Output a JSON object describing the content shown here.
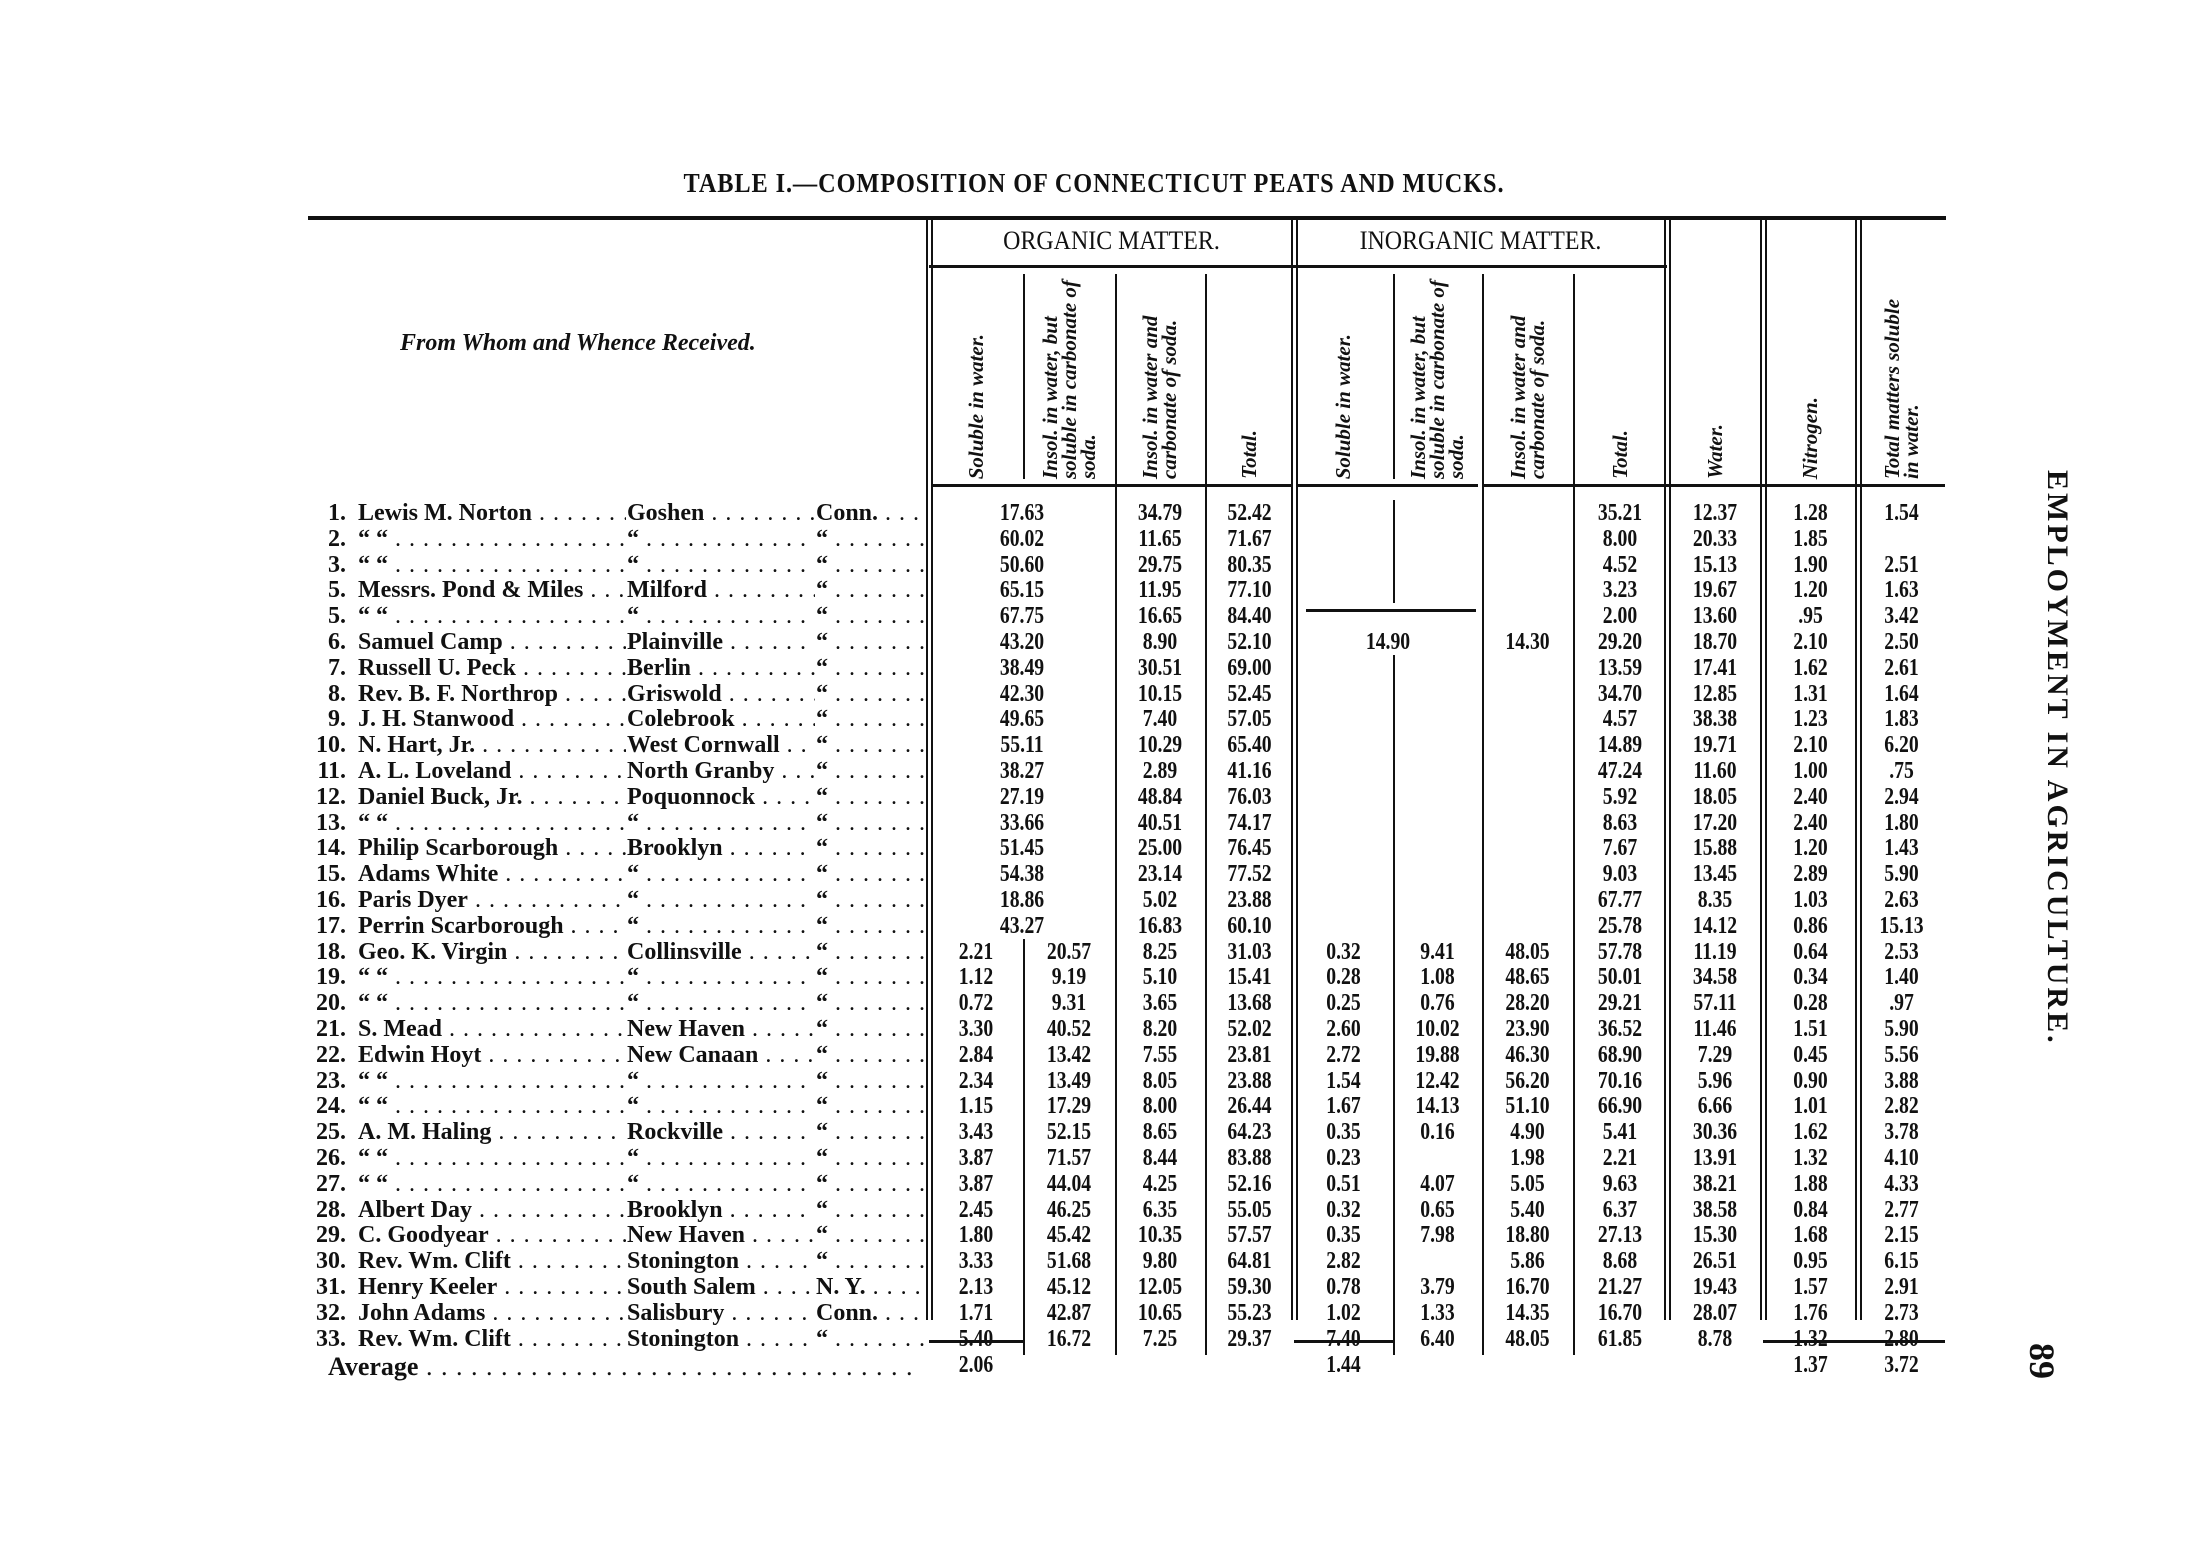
{
  "title": "TABLE I.—COMPOSITION OF CONNECTICUT PEATS AND MUCKS.",
  "side_heading": "EMPLOYMENT IN AGRICULTURE.",
  "page_number": "89",
  "headers": {
    "from_whom": "From Whom and Whence Received.",
    "organic_group": "ORGANIC MATTER.",
    "inorganic_group": "INORGANIC MATTER.",
    "columns": [
      "Soluble in water.",
      "Insol. in water, but soluble in carbonate of soda.",
      "Insol. in water and carbonate of soda.",
      "Total.",
      "Soluble in water.",
      "Insol. in water, but soluble in carbonate of soda.",
      "Insol. in water and carbonate of soda.",
      "Total.",
      "Water.",
      "Nitrogen.",
      "Total matters soluble in water."
    ]
  },
  "inorganic_combined": {
    "soluble_and_insol": "14.90",
    "insol_water_and_soda": "14.30"
  },
  "rows": [
    {
      "no": "1.",
      "name": "Lewis M. Norton",
      "town": "Goshen",
      "state": "Conn.",
      "v": [
        "17.63",
        "",
        "34.79",
        "52.42",
        "",
        "",
        "",
        "35.21",
        "12.37",
        "1.28",
        "1.54"
      ]
    },
    {
      "no": "2.",
      "name": "“        “",
      "town": "“",
      "state": "“",
      "v": [
        "60.02",
        "",
        "11.65",
        "71.67",
        "",
        "",
        "",
        "8.00",
        "20.33",
        "1.85",
        ""
      ]
    },
    {
      "no": "3.",
      "name": "“        “",
      "town": "“",
      "state": "“",
      "v": [
        "50.60",
        "",
        "29.75",
        "80.35",
        "",
        "",
        "",
        "4.52",
        "15.13",
        "1.90",
        "2.51"
      ]
    },
    {
      "no": "5.",
      "name": "Messrs. Pond & Miles",
      "town": "Milford",
      "state": "“",
      "v": [
        "65.15",
        "",
        "11.95",
        "77.10",
        "",
        "",
        "",
        "3.23",
        "19.67",
        "1.20",
        "1.63"
      ]
    },
    {
      "no": "5.",
      "name": "“        “",
      "town": "“",
      "state": "“",
      "v": [
        "67.75",
        "",
        "16.65",
        "84.40",
        "",
        "",
        "",
        "2.00",
        "13.60",
        ".95",
        "3.42"
      ]
    },
    {
      "no": "6.",
      "name": "Samuel Camp",
      "town": "Plainville",
      "state": "“",
      "v": [
        "43.20",
        "",
        "8.90",
        "52.10",
        "",
        "",
        "",
        "29.20",
        "18.70",
        "2.10",
        "2.50"
      ]
    },
    {
      "no": "7.",
      "name": "Russell U. Peck",
      "town": "Berlin",
      "state": "“",
      "v": [
        "38.49",
        "",
        "30.51",
        "69.00",
        "",
        "",
        "",
        "13.59",
        "17.41",
        "1.62",
        "2.61"
      ]
    },
    {
      "no": "8.",
      "name": "Rev. B. F. Northrop",
      "town": "Griswold",
      "state": "“",
      "v": [
        "42.30",
        "",
        "10.15",
        "52.45",
        "",
        "",
        "",
        "34.70",
        "12.85",
        "1.31",
        "1.64"
      ]
    },
    {
      "no": "9.",
      "name": "J. H. Stanwood",
      "town": "Colebrook",
      "state": "“",
      "v": [
        "49.65",
        "",
        "7.40",
        "57.05",
        "",
        "",
        "",
        "4.57",
        "38.38",
        "1.23",
        "1.83"
      ]
    },
    {
      "no": "10.",
      "name": "N. Hart, Jr.",
      "town": "West Cornwall",
      "state": "“",
      "v": [
        "55.11",
        "",
        "10.29",
        "65.40",
        "",
        "",
        "",
        "14.89",
        "19.71",
        "2.10",
        "6.20"
      ]
    },
    {
      "no": "11.",
      "name": "A. L. Loveland",
      "town": "North Granby",
      "state": "“",
      "v": [
        "38.27",
        "",
        "2.89",
        "41.16",
        "",
        "",
        "",
        "47.24",
        "11.60",
        "1.00",
        ".75"
      ]
    },
    {
      "no": "12.",
      "name": "Daniel Buck, Jr.",
      "town": "Poquonnock",
      "state": "“",
      "v": [
        "27.19",
        "",
        "48.84",
        "76.03",
        "",
        "",
        "",
        "5.92",
        "18.05",
        "2.40",
        "2.94"
      ]
    },
    {
      "no": "13.",
      "name": "“        “",
      "town": "“",
      "state": "“",
      "v": [
        "33.66",
        "",
        "40.51",
        "74.17",
        "",
        "",
        "",
        "8.63",
        "17.20",
        "2.40",
        "1.80"
      ]
    },
    {
      "no": "14.",
      "name": "Philip Scarborough",
      "town": "Brooklyn",
      "state": "“",
      "v": [
        "51.45",
        "",
        "25.00",
        "76.45",
        "",
        "",
        "",
        "7.67",
        "15.88",
        "1.20",
        "1.43"
      ]
    },
    {
      "no": "15.",
      "name": "Adams White",
      "town": "“",
      "state": "“",
      "v": [
        "54.38",
        "",
        "23.14",
        "77.52",
        "",
        "",
        "",
        "9.03",
        "13.45",
        "2.89",
        "5.90"
      ]
    },
    {
      "no": "16.",
      "name": "Paris Dyer",
      "town": "“",
      "state": "“",
      "v": [
        "18.86",
        "",
        "5.02",
        "23.88",
        "",
        "",
        "",
        "67.77",
        "8.35",
        "1.03",
        "2.63"
      ]
    },
    {
      "no": "17.",
      "name": "Perrin Scarborough",
      "town": "“",
      "state": "“",
      "v": [
        "43.27",
        "",
        "16.83",
        "60.10",
        "",
        "",
        "",
        "25.78",
        "14.12",
        "0.86",
        "15.13"
      ]
    },
    {
      "no": "18.",
      "name": "Geo. K. Virgin",
      "town": "Collinsville",
      "state": "“",
      "v": [
        "2.21",
        "20.57",
        "8.25",
        "31.03",
        "0.32",
        "9.41",
        "48.05",
        "57.78",
        "11.19",
        "0.64",
        "2.53"
      ]
    },
    {
      "no": "19.",
      "name": "“        “",
      "town": "“",
      "state": "“",
      "v": [
        "1.12",
        "9.19",
        "5.10",
        "15.41",
        "0.28",
        "1.08",
        "48.65",
        "50.01",
        "34.58",
        "0.34",
        "1.40"
      ]
    },
    {
      "no": "20.",
      "name": "“        “",
      "town": "“",
      "state": "“",
      "v": [
        "0.72",
        "9.31",
        "3.65",
        "13.68",
        "0.25",
        "0.76",
        "28.20",
        "29.21",
        "57.11",
        "0.28",
        ".97"
      ]
    },
    {
      "no": "21.",
      "name": "S. Mead",
      "town": "New Haven",
      "state": "“",
      "v": [
        "3.30",
        "40.52",
        "8.20",
        "52.02",
        "2.60",
        "10.02",
        "23.90",
        "36.52",
        "11.46",
        "1.51",
        "5.90"
      ]
    },
    {
      "no": "22.",
      "name": "Edwin Hoyt",
      "town": "New Canaan",
      "state": "“",
      "v": [
        "2.84",
        "13.42",
        "7.55",
        "23.81",
        "2.72",
        "19.88",
        "46.30",
        "68.90",
        "7.29",
        "0.45",
        "5.56"
      ]
    },
    {
      "no": "23.",
      "name": "“        “",
      "town": "“",
      "state": "“",
      "v": [
        "2.34",
        "13.49",
        "8.05",
        "23.88",
        "1.54",
        "12.42",
        "56.20",
        "70.16",
        "5.96",
        "0.90",
        "3.88"
      ]
    },
    {
      "no": "24.",
      "name": "“        “",
      "town": "“",
      "state": "“",
      "v": [
        "1.15",
        "17.29",
        "8.00",
        "26.44",
        "1.67",
        "14.13",
        "51.10",
        "66.90",
        "6.66",
        "1.01",
        "2.82"
      ]
    },
    {
      "no": "25.",
      "name": "A. M. Haling",
      "town": "Rockville",
      "state": "“",
      "v": [
        "3.43",
        "52.15",
        "8.65",
        "64.23",
        "0.35",
        "0.16",
        "4.90",
        "5.41",
        "30.36",
        "1.62",
        "3.78"
      ]
    },
    {
      "no": "26.",
      "name": "“        “",
      "town": "“",
      "state": "“",
      "v": [
        "3.87",
        "71.57",
        "8.44",
        "83.88",
        "0.23",
        "",
        "1.98",
        "2.21",
        "13.91",
        "1.32",
        "4.10"
      ]
    },
    {
      "no": "27.",
      "name": "“        “",
      "town": "“",
      "state": "“",
      "v": [
        "3.87",
        "44.04",
        "4.25",
        "52.16",
        "0.51",
        "4.07",
        "5.05",
        "9.63",
        "38.21",
        "1.88",
        "4.33"
      ]
    },
    {
      "no": "28.",
      "name": "Albert Day",
      "town": "Brooklyn",
      "state": "“",
      "v": [
        "2.45",
        "46.25",
        "6.35",
        "55.05",
        "0.32",
        "0.65",
        "5.40",
        "6.37",
        "38.58",
        "0.84",
        "2.77"
      ]
    },
    {
      "no": "29.",
      "name": "C. Goodyear",
      "town": "New Haven",
      "state": "“",
      "v": [
        "1.80",
        "45.42",
        "10.35",
        "57.57",
        "0.35",
        "7.98",
        "18.80",
        "27.13",
        "15.30",
        "1.68",
        "2.15"
      ]
    },
    {
      "no": "30.",
      "name": "Rev. Wm. Clift",
      "town": "Stonington",
      "state": "“",
      "v": [
        "3.33",
        "51.68",
        "9.80",
        "64.81",
        "2.82",
        "",
        "5.86",
        "8.68",
        "26.51",
        "0.95",
        "6.15"
      ]
    },
    {
      "no": "31.",
      "name": "Henry Keeler",
      "town": "South Salem",
      "state": "N. Y.",
      "v": [
        "2.13",
        "45.12",
        "12.05",
        "59.30",
        "0.78",
        "3.79",
        "16.70",
        "21.27",
        "19.43",
        "1.57",
        "2.91"
      ]
    },
    {
      "no": "32.",
      "name": "John Adams",
      "town": "Salisbury",
      "state": "Conn.",
      "v": [
        "1.71",
        "42.87",
        "10.65",
        "55.23",
        "1.02",
        "1.33",
        "14.35",
        "16.70",
        "28.07",
        "1.76",
        "2.73"
      ]
    },
    {
      "no": "33.",
      "name": "Rev. Wm. Clift",
      "town": "Stonington",
      "state": "“",
      "v": [
        "5.40",
        "16.72",
        "7.25",
        "29.37",
        "7.40",
        "6.40",
        "48.05",
        "61.85",
        "8.78",
        "1.32",
        "2.80"
      ]
    }
  ],
  "average": {
    "label": "Average",
    "organic_soluble": "2.06",
    "inorganic_soluble": "1.44",
    "nitrogen": "1.37",
    "total_soluble": "3.72"
  }
}
